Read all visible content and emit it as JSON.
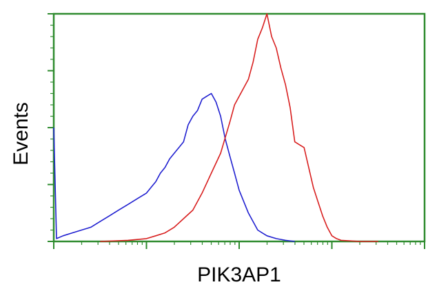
{
  "chart_data": {
    "type": "line",
    "title": "",
    "xlabel": "PIK3AP1",
    "ylabel": "Events",
    "xscale": "log",
    "xlim": [
      0,
      4
    ],
    "ylim": [
      0,
      4
    ],
    "x_major_ticks": [
      0,
      1,
      2,
      3,
      4
    ],
    "y_major_ticks": [
      0,
      1,
      2,
      3,
      4
    ],
    "grid": false,
    "legend": "none",
    "frame_color": "#2e8b2e",
    "series": [
      {
        "color": "#1f1fd0",
        "x": [
          0.0,
          0.03,
          0.1,
          0.2,
          0.3,
          0.4,
          0.5,
          0.6,
          0.7,
          0.8,
          0.9,
          1.0,
          1.05,
          1.1,
          1.15,
          1.2,
          1.25,
          1.3,
          1.35,
          1.4,
          1.45,
          1.5,
          1.55,
          1.6,
          1.65,
          1.7,
          1.75,
          1.8,
          1.85,
          1.9,
          1.95,
          2.0,
          2.1,
          2.2,
          2.3,
          2.4,
          2.5,
          2.6
        ],
        "y": [
          2.0,
          0.05,
          0.1,
          0.15,
          0.2,
          0.25,
          0.35,
          0.45,
          0.55,
          0.65,
          0.75,
          0.85,
          0.95,
          1.05,
          1.2,
          1.3,
          1.45,
          1.55,
          1.65,
          1.75,
          2.05,
          2.2,
          2.3,
          2.5,
          2.55,
          2.6,
          2.45,
          2.2,
          1.8,
          1.5,
          1.2,
          0.9,
          0.5,
          0.2,
          0.1,
          0.05,
          0.02,
          0.0
        ]
      },
      {
        "color": "#d81e1e",
        "x": [
          0.5,
          0.8,
          1.0,
          1.1,
          1.2,
          1.3,
          1.4,
          1.5,
          1.6,
          1.7,
          1.8,
          1.9,
          1.95,
          2.0,
          2.05,
          2.1,
          2.15,
          2.2,
          2.25,
          2.3,
          2.35,
          2.4,
          2.45,
          2.5,
          2.55,
          2.6,
          2.65,
          2.7,
          2.75,
          2.8,
          2.85,
          2.9,
          2.95,
          3.0,
          3.05,
          3.1,
          3.2,
          3.3,
          3.5
        ],
        "y": [
          0.0,
          0.02,
          0.05,
          0.1,
          0.15,
          0.25,
          0.4,
          0.55,
          0.85,
          1.2,
          1.55,
          2.1,
          2.4,
          2.55,
          2.7,
          2.85,
          3.15,
          3.55,
          3.75,
          4.0,
          3.6,
          3.4,
          3.05,
          2.75,
          2.35,
          1.75,
          1.7,
          1.65,
          1.3,
          0.95,
          0.7,
          0.45,
          0.25,
          0.1,
          0.05,
          0.02,
          0.01,
          0.0,
          0.0
        ]
      }
    ]
  }
}
